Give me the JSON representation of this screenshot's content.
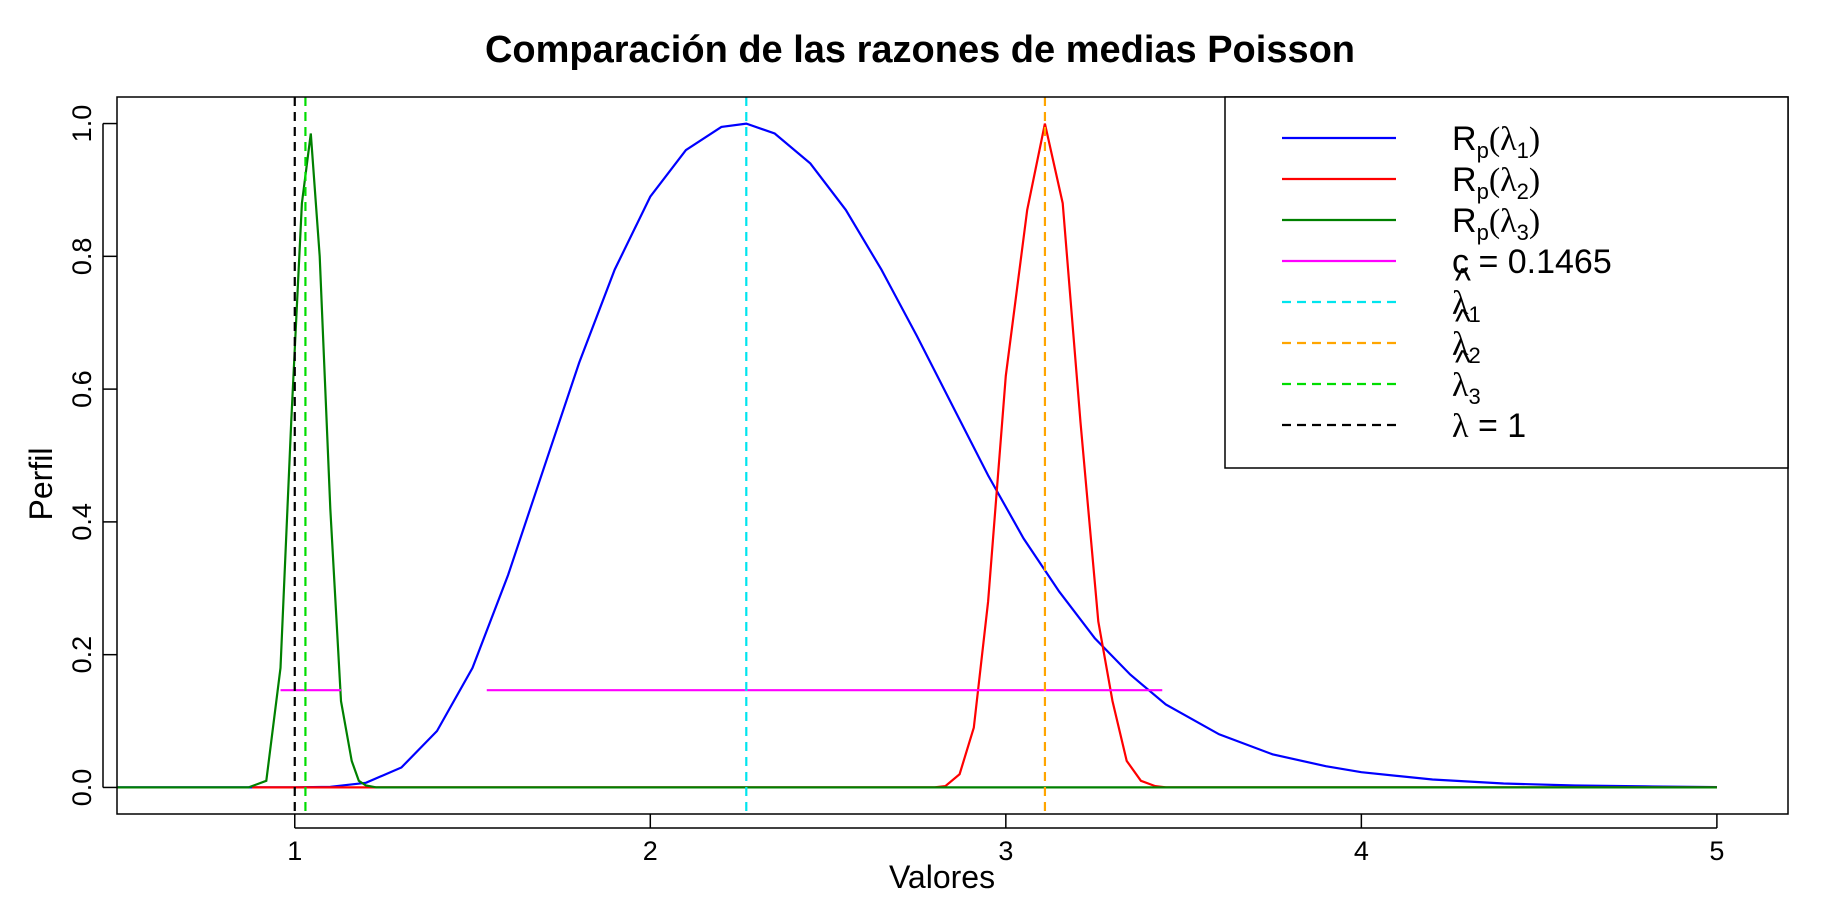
{
  "chart_data": {
    "type": "line",
    "title": "Comparación de las razones de medias Poisson",
    "xlabel": "Valores",
    "ylabel": "Perfil",
    "xlim": [
      0.5,
      5.2
    ],
    "ylim": [
      -0.04,
      1.04
    ],
    "xticks": [
      1,
      2,
      3,
      4,
      5
    ],
    "yticks": [
      "0.0",
      "0.2",
      "0.4",
      "0.6",
      "0.8",
      "1.0"
    ],
    "grid": false,
    "legend_position": "top-right",
    "series": [
      {
        "key": "rp1",
        "legend_base": "R",
        "legend_sub": "p",
        "legend_arg": "λ",
        "legend_arg_sub": "1",
        "color": "#0000ff",
        "style": "solid",
        "x": [
          0.5,
          1.0,
          1.1,
          1.2,
          1.3,
          1.4,
          1.5,
          1.6,
          1.7,
          1.8,
          1.9,
          2.0,
          2.1,
          2.2,
          2.27,
          2.35,
          2.45,
          2.55,
          2.65,
          2.75,
          2.85,
          2.95,
          3.05,
          3.15,
          3.25,
          3.35,
          3.45,
          3.6,
          3.75,
          3.9,
          4.0,
          4.2,
          4.4,
          4.6,
          4.8,
          5.0
        ],
        "y": [
          0.0,
          0.0,
          0.001,
          0.007,
          0.03,
          0.085,
          0.18,
          0.32,
          0.48,
          0.64,
          0.78,
          0.89,
          0.96,
          0.995,
          1.0,
          0.985,
          0.94,
          0.87,
          0.78,
          0.68,
          0.575,
          0.47,
          0.375,
          0.295,
          0.225,
          0.17,
          0.125,
          0.08,
          0.05,
          0.032,
          0.023,
          0.012,
          0.006,
          0.003,
          0.0015,
          0.0005
        ]
      },
      {
        "key": "rp2",
        "legend_base": "R",
        "legend_sub": "p",
        "legend_arg": "λ",
        "legend_arg_sub": "2",
        "color": "#ff0000",
        "style": "solid",
        "x": [
          0.88,
          2.8,
          2.83,
          2.87,
          2.91,
          2.95,
          3.0,
          3.06,
          3.11,
          3.16,
          3.21,
          3.26,
          3.3,
          3.34,
          3.38,
          3.42,
          3.45,
          5.0
        ],
        "y": [
          0.0,
          0.0,
          0.002,
          0.02,
          0.09,
          0.28,
          0.62,
          0.87,
          1.0,
          0.88,
          0.55,
          0.25,
          0.13,
          0.04,
          0.01,
          0.002,
          0.0,
          0.0
        ]
      },
      {
        "key": "rp3",
        "legend_base": "R",
        "legend_sub": "p",
        "legend_arg": "λ",
        "legend_arg_sub": "3",
        "color": "#008000",
        "style": "solid",
        "x": [
          0.5,
          0.87,
          0.92,
          0.96,
          0.99,
          1.02,
          1.045,
          1.07,
          1.1,
          1.13,
          1.16,
          1.18,
          1.2,
          1.23,
          5.0
        ],
        "y": [
          0.0,
          0.0,
          0.01,
          0.18,
          0.55,
          0.88,
          0.985,
          0.8,
          0.42,
          0.13,
          0.04,
          0.01,
          0.003,
          0.0,
          0.0
        ]
      }
    ],
    "segments": [
      {
        "key": "c",
        "color": "#ff00ff",
        "style": "solid",
        "y": 0.1465,
        "ranges": [
          [
            0.96,
            1.13
          ],
          [
            1.54,
            3.44
          ]
        ],
        "legend_text": "c = 0.1465"
      }
    ],
    "vlines": [
      {
        "key": "hat1",
        "x": 2.27,
        "color": "#00e5ee",
        "style": "dashed",
        "legend_symbol": "λ",
        "legend_sub": "1",
        "hat": true
      },
      {
        "key": "hat2",
        "x": 3.11,
        "color": "#ffa500",
        "style": "dashed",
        "legend_symbol": "λ",
        "legend_sub": "2",
        "hat": true
      },
      {
        "key": "hat3",
        "x": 1.03,
        "color": "#00dd00",
        "style": "dashed",
        "legend_symbol": "λ",
        "legend_sub": "3",
        "hat": true
      },
      {
        "key": "one",
        "x": 1.0,
        "color": "#000000",
        "style": "dashed",
        "legend_symbol": "λ",
        "legend_text": " = 1",
        "hat": false
      }
    ]
  }
}
